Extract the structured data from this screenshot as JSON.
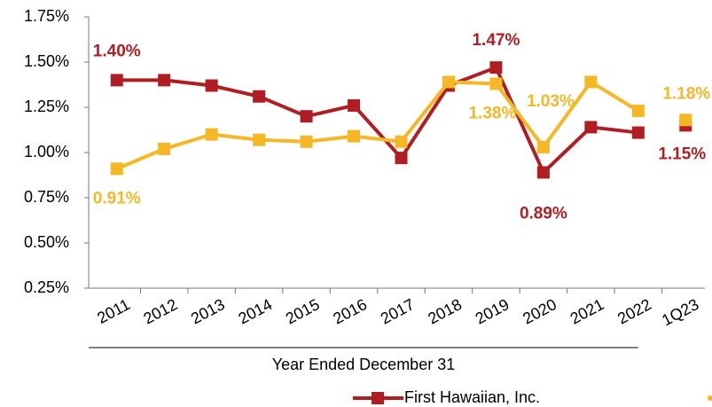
{
  "chart_data": {
    "type": "line",
    "categories": [
      "2011",
      "2012",
      "2013",
      "2014",
      "2015",
      "2016",
      "2017",
      "2018",
      "2019",
      "2020",
      "2021",
      "2022",
      "1Q23"
    ],
    "xlabel": "Year Ended December 31",
    "series": [
      {
        "name": "First Hawaiian, Inc.",
        "color": "#b01e23",
        "values": [
          1.4,
          1.4,
          1.37,
          1.31,
          1.2,
          1.26,
          0.97,
          1.37,
          1.47,
          0.89,
          1.14,
          1.11,
          1.15
        ],
        "value_labels": [
          "1.40%",
          null,
          null,
          null,
          null,
          null,
          null,
          null,
          "1.47%",
          "0.89%",
          null,
          null,
          "1.15%"
        ]
      },
      {
        "color": "#f6b724",
        "values": [
          0.91,
          1.02,
          1.1,
          1.07,
          1.06,
          1.09,
          1.06,
          1.39,
          1.38,
          1.03,
          1.39,
          1.23,
          1.18
        ],
        "value_labels": [
          "0.91%",
          null,
          null,
          null,
          null,
          null,
          null,
          null,
          "1.38%",
          "1.03%",
          null,
          null,
          "1.18%"
        ]
      }
    ],
    "ylim": [
      0.25,
      1.75
    ],
    "yticks": [
      {
        "value": 0.25,
        "label": "0.25%"
      },
      {
        "value": 0.5,
        "label": "0.50%"
      },
      {
        "value": 0.75,
        "label": "0.75%"
      },
      {
        "value": 1.0,
        "label": "1.00%"
      },
      {
        "value": 1.25,
        "label": "1.25%"
      },
      {
        "value": 1.5,
        "label": "1.50%"
      },
      {
        "value": 1.75,
        "label": "1.75%"
      }
    ],
    "legend": "bottom"
  }
}
